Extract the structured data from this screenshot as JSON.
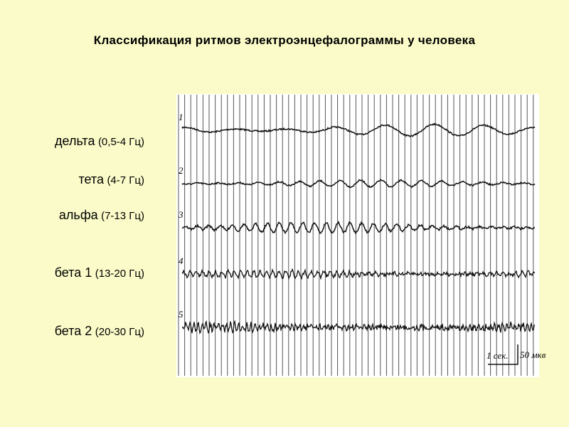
{
  "title": "Классификация ритмов электроэнцефалограммы у человека",
  "rhythms": [
    {
      "name": "дельта",
      "range": "(0,5-4 Гц)"
    },
    {
      "name": "тета",
      "range": "(4-7 Гц)"
    },
    {
      "name": "альфа",
      "range": "(7-13 Гц)"
    },
    {
      "name": "бета 1",
      "range": "(13-20 Гц)"
    },
    {
      "name": "бета 2",
      "range": "(20-30 Гц)"
    }
  ],
  "eeg_image": {
    "trace_labels": [
      "1",
      "2",
      "3",
      "4",
      "5"
    ],
    "time_scale": "1 сек.",
    "amplitude_scale": "50 мкв"
  }
}
